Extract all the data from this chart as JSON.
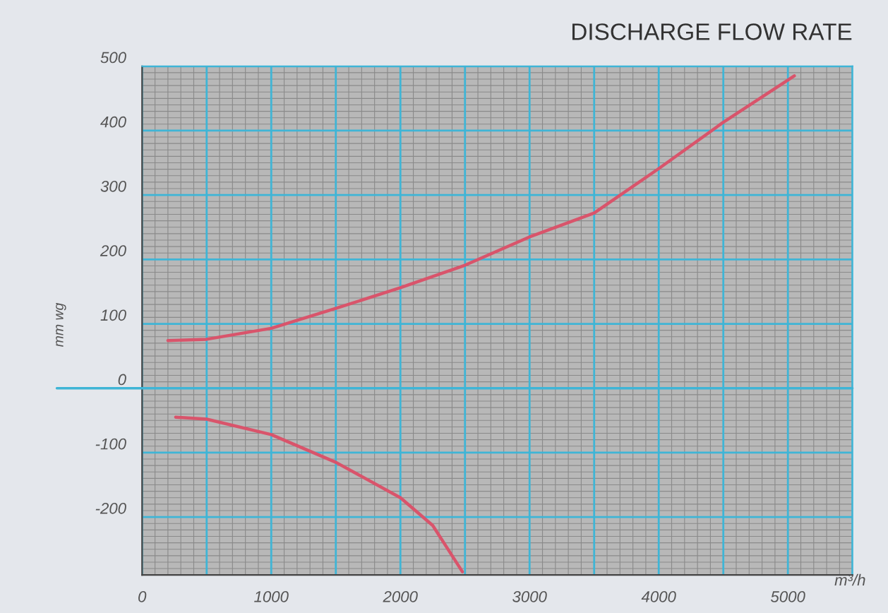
{
  "chart_data": {
    "type": "line",
    "title": "DISCHARGE FLOW RATE",
    "xlabel": "m³/h",
    "ylabel": "mm wg",
    "series": [
      {
        "x": [
          200,
          500,
          1000,
          1500,
          2000,
          2500,
          3000,
          3500,
          4000,
          4500,
          5050
        ],
        "values": [
          74,
          76,
          93,
          124,
          156,
          191,
          235,
          272,
          341,
          413,
          485
        ],
        "color": "#d9546b"
      },
      {
        "x": [
          260,
          500,
          1000,
          1500,
          2000,
          2250,
          2480
        ],
        "values": [
          -45,
          -48,
          -72,
          -115,
          -170,
          -213,
          -285
        ],
        "color": "#d9546b"
      }
    ],
    "xlim": [
      0,
      5500
    ],
    "ylim": [
      -290,
      500
    ],
    "xticks": [
      0,
      1000,
      2000,
      3000,
      4000,
      5000
    ],
    "yticks": [
      -200,
      -100,
      0,
      100,
      200,
      300,
      400,
      500
    ],
    "ref_lines": [
      {
        "axis": "y",
        "value": 0,
        "color": "#3fb5d6"
      }
    ],
    "grid": true,
    "legend": false,
    "marker": "none",
    "line_style": "solid"
  }
}
